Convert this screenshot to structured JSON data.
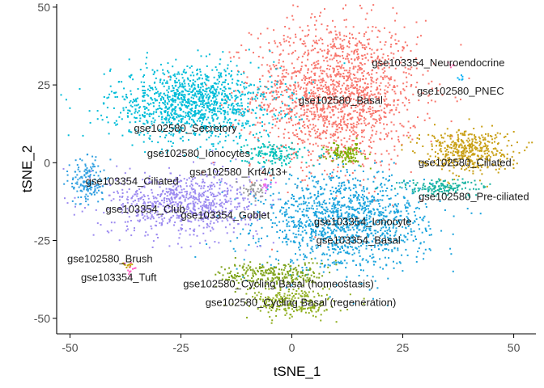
{
  "chart_data": {
    "type": "scatter",
    "xlabel": "tSNE_1",
    "ylabel": "tSNE_2",
    "xlim": [
      -53,
      55
    ],
    "ylim": [
      -55,
      51
    ],
    "xticks": [
      -50,
      -25,
      0,
      25,
      50
    ],
    "yticks": [
      -50,
      -25,
      0,
      25,
      50
    ],
    "grid": false,
    "legend": "none",
    "clusters": [
      {
        "name": "gse102580_Basal",
        "color": "#F8766D",
        "cx": 10,
        "cy": 22,
        "sx": 11,
        "sy": 14,
        "n": 1700
      },
      {
        "name": "gse102580_Secretory",
        "color": "#00BCD8",
        "cx": -22,
        "cy": 19,
        "sx": 11,
        "sy": 7,
        "n": 1200
      },
      {
        "name": "gse103354_Basal",
        "color": "#1AA3DD",
        "cx": 12,
        "cy": -19,
        "sx": 11,
        "sy": 9,
        "n": 1300
      },
      {
        "name": "gse103354_Club",
        "color": "#9C8AF0",
        "cx": -24,
        "cy": -13,
        "sx": 10,
        "sy": 6,
        "n": 800
      },
      {
        "name": "gse103354_Ciliated",
        "color": "#2E9FE0",
        "cx": -46,
        "cy": -6,
        "sx": 2.2,
        "sy": 4.5,
        "n": 160
      },
      {
        "name": "gse102580_Ciliated",
        "color": "#C9A016",
        "cx": 39,
        "cy": 4,
        "sx": 6,
        "sy": 4,
        "n": 450
      },
      {
        "name": "gse102580_Pre-ciliated",
        "color": "#19B3A1",
        "cx": 34,
        "cy": -8,
        "sx": 6,
        "sy": 1.6,
        "n": 150
      },
      {
        "name": "gse102580_Cycling Basal (homeostasis)",
        "color": "#7FA319",
        "cx": -4,
        "cy": -36,
        "sx": 7,
        "sy": 2.5,
        "n": 260
      },
      {
        "name": "gse102580_Cycling Basal (regeneration)",
        "color": "#8FAE1E",
        "cx": 0,
        "cy": -45,
        "sx": 6,
        "sy": 3,
        "n": 240
      },
      {
        "name": "gse102580_Ionocytes",
        "color": "#00C0B8",
        "cx": -4,
        "cy": 3,
        "sx": 4,
        "sy": 2.2,
        "n": 140
      },
      {
        "name": "gse102580_Krt4/13+",
        "color": "#7CAE00",
        "cx": 12,
        "cy": 3,
        "sx": 2.5,
        "sy": 2,
        "n": 110
      },
      {
        "name": "gse103354_Goblet",
        "color": "#9A9A9A",
        "cx": -9,
        "cy": -9,
        "sx": 2,
        "sy": 1.5,
        "n": 40
      },
      {
        "name": "gse103354_Ionocyte",
        "color": "#E76BF3",
        "cx": -5,
        "cy": -8,
        "sx": 1,
        "sy": 1,
        "n": 12
      },
      {
        "name": "gse102580_Brush",
        "color": "#C2A000",
        "cx": -37,
        "cy": -33,
        "sx": 0.8,
        "sy": 0.6,
        "n": 12
      },
      {
        "name": "gse103354_Tuft",
        "color": "#FF61C3",
        "cx": -36,
        "cy": -34,
        "sx": 1,
        "sy": 1.5,
        "n": 12
      },
      {
        "name": "gse103354_Neuroendocrine",
        "color": "#FF64B0",
        "cx": 36,
        "cy": 31,
        "sx": 0.6,
        "sy": 0.6,
        "n": 6
      },
      {
        "name": "gse102580_PNEC",
        "color": "#00B0F6",
        "cx": 38,
        "cy": 27,
        "sx": 0.6,
        "sy": 0.6,
        "n": 6
      }
    ],
    "annotations": [
      {
        "text": "gse103354_Neuroendocrine",
        "x": 33,
        "y": 32
      },
      {
        "text": "gse102580_PNEC",
        "x": 38,
        "y": 23
      },
      {
        "text": "gse102580_Basal",
        "x": 11,
        "y": 20
      },
      {
        "text": "gse102580_Secretory",
        "x": -24,
        "y": 11
      },
      {
        "text": "gse102580_Ionocytes",
        "x": -21,
        "y": 3
      },
      {
        "text": "gse102580_Ciliated",
        "x": 39,
        "y": 0
      },
      {
        "text": "gse102580_Krt4/13+",
        "x": -12,
        "y": -3
      },
      {
        "text": "gse103354_Ciliated",
        "x": -36,
        "y": -6
      },
      {
        "text": "gse102580_Pre-ciliated",
        "x": 41,
        "y": -11
      },
      {
        "text": "gse103354_Club",
        "x": -33,
        "y": -15
      },
      {
        "text": "gse103354_Goblet",
        "x": -15,
        "y": -17
      },
      {
        "text": "gse103354_Ionocyte",
        "x": 16,
        "y": -19
      },
      {
        "text": "gse103354_Basal",
        "x": 15,
        "y": -25
      },
      {
        "text": "gse102580_Brush",
        "x": -41,
        "y": -31
      },
      {
        "text": "gse103354_Tuft",
        "x": -39,
        "y": -37
      },
      {
        "text": "gse102580_Cycling Basal (homeostasis)",
        "x": -3,
        "y": -39
      },
      {
        "text": "gse102580_Cycling Basal (regeneration)",
        "x": 2,
        "y": -45
      }
    ]
  }
}
